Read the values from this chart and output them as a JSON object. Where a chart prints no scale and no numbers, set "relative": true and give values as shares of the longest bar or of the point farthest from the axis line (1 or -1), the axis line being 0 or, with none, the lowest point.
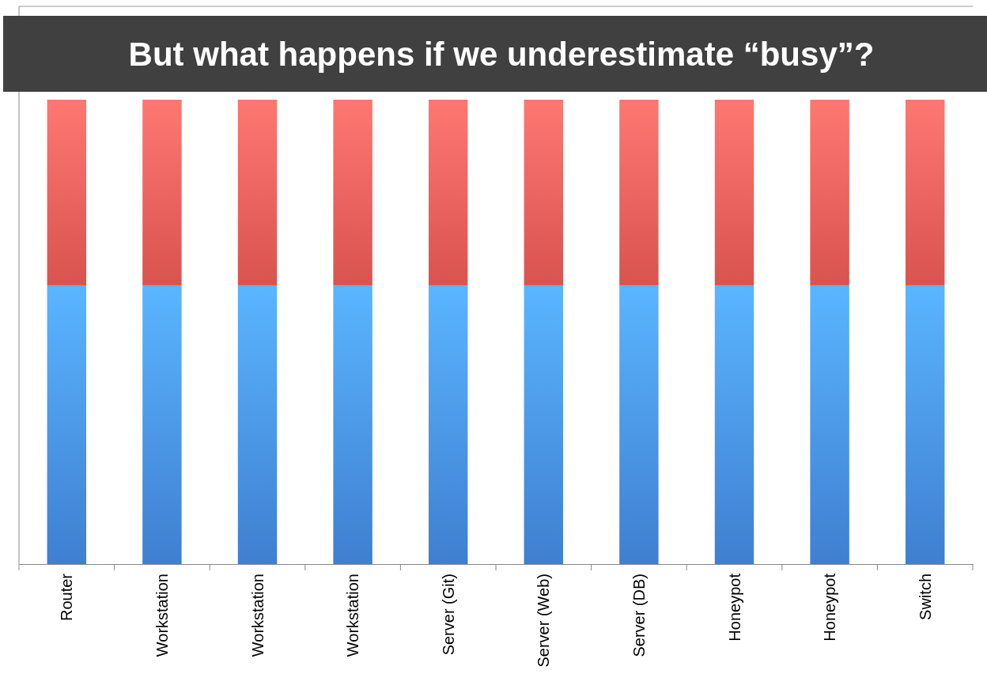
{
  "chart_data": {
    "type": "bar",
    "stacked": true,
    "relative": true,
    "categories": [
      "Router",
      "Workstation",
      "Workstation",
      "Workstation",
      "Server (Git)",
      "Server (Web)",
      "Server (DB)",
      "Honeypot",
      "Honeypot",
      "Switch"
    ],
    "series": [
      {
        "color": "#3f7fd0",
        "values": [
          0.6,
          0.6,
          0.6,
          0.6,
          0.6,
          0.6,
          0.6,
          0.6,
          0.6,
          0.6
        ]
      },
      {
        "color": "#d9534f",
        "values": [
          0.4,
          0.4,
          0.4,
          0.4,
          0.4,
          0.4,
          0.4,
          0.4,
          0.4,
          0.4
        ]
      }
    ],
    "annotations": [
      "But what happens if we underestimate “busy”?"
    ]
  }
}
